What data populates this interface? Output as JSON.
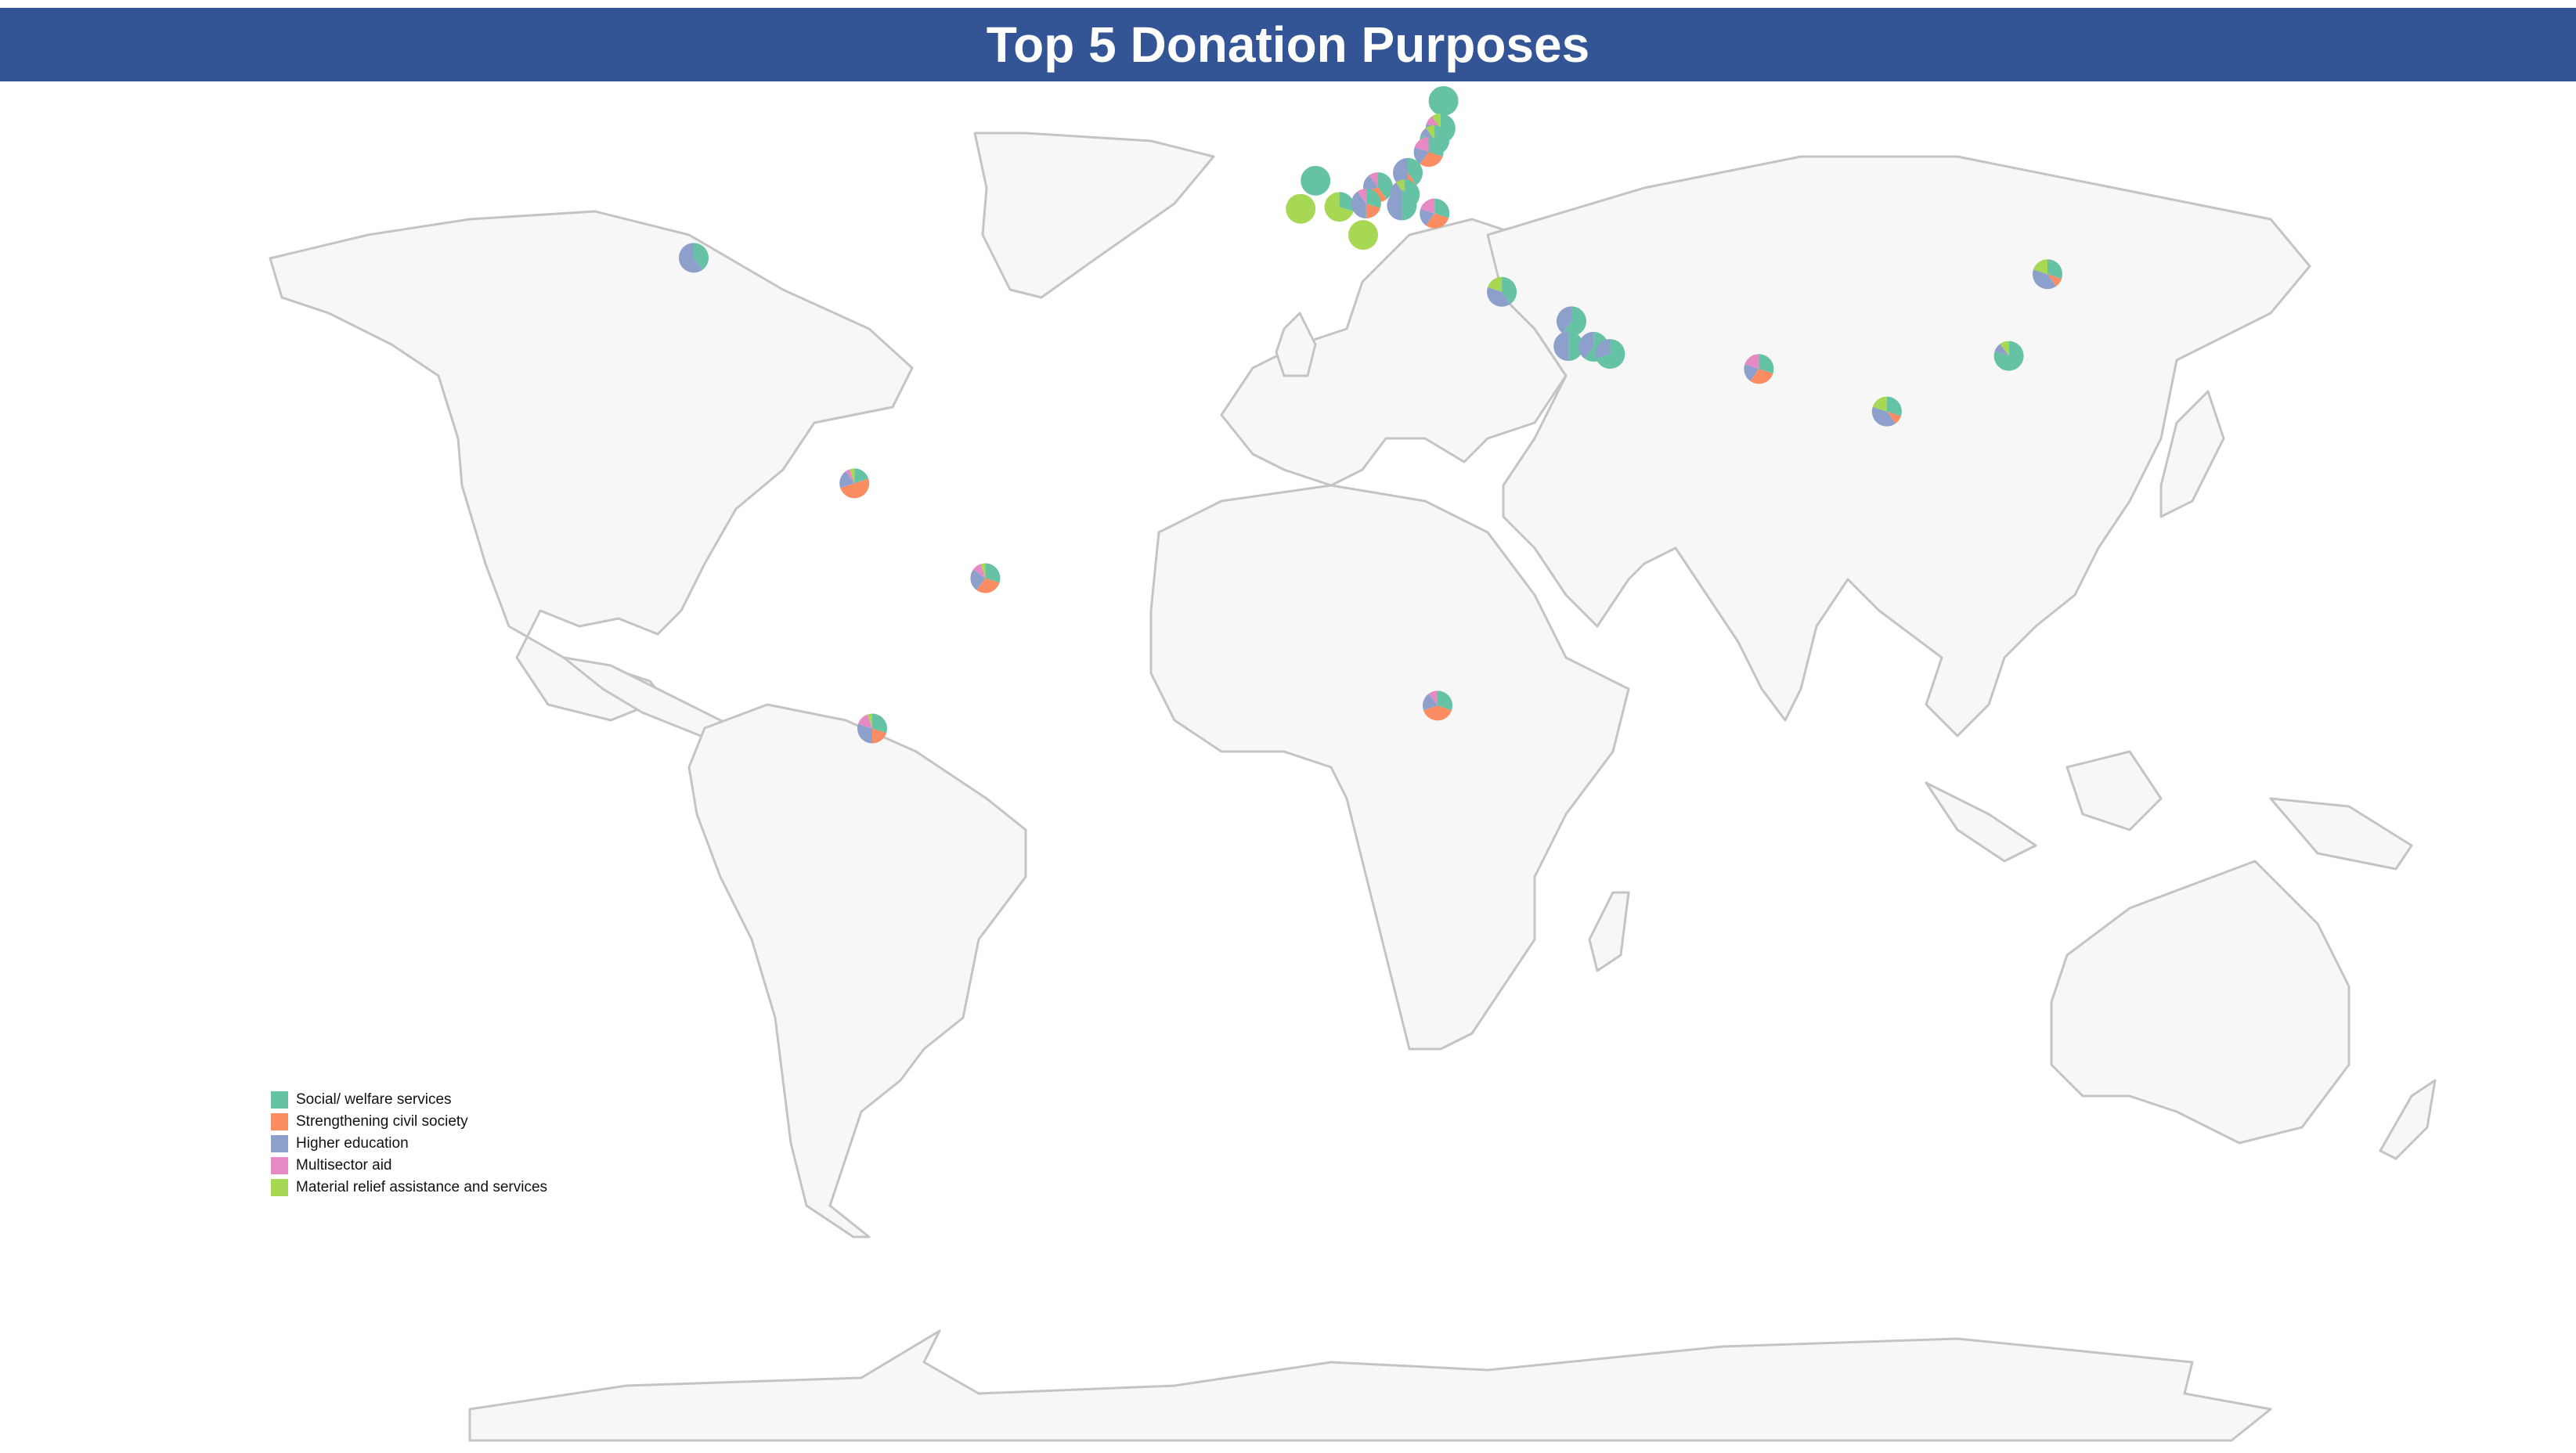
{
  "title": "Top 5 Donation Purposes",
  "colors": {
    "title_bar": "#345595",
    "land_fill": "#f7f7f7",
    "land_stroke": "#c4c4c4"
  },
  "legend": [
    {
      "label": "Social/ welfare services",
      "color": "#66c2a5"
    },
    {
      "label": "Strengthening civil society",
      "color": "#fc8d62"
    },
    {
      "label": "Higher education",
      "color": "#8da0cb"
    },
    {
      "label": "Multisector aid",
      "color": "#e78ac3"
    },
    {
      "label": "Material relief assistance and services",
      "color": "#a6d854"
    }
  ],
  "chart_data": {
    "type": "pie",
    "map": "world",
    "markers": [
      {
        "id": "usa",
        "lon": -100,
        "lat": 39,
        "shares": [
          0.4,
          0.0,
          0.6,
          0.0,
          0.0
        ]
      },
      {
        "id": "colombia",
        "lon": -73,
        "lat": 4.5,
        "shares": [
          0.2,
          0.5,
          0.2,
          0.05,
          0.05
        ]
      },
      {
        "id": "brazil",
        "lon": -51,
        "lat": -10,
        "shares": [
          0.3,
          0.3,
          0.25,
          0.1,
          0.05
        ]
      },
      {
        "id": "chile",
        "lon": -70,
        "lat": -33,
        "shares": [
          0.3,
          0.2,
          0.3,
          0.15,
          0.05
        ]
      },
      {
        "id": "finland",
        "lon": 26,
        "lat": 63,
        "shares": [
          1.0,
          0.0,
          0.0,
          0.0,
          0.0
        ]
      },
      {
        "id": "estonia",
        "lon": 25.5,
        "lat": 58.8,
        "shares": [
          0.4,
          0.2,
          0.2,
          0.1,
          0.1
        ]
      },
      {
        "id": "latvia",
        "lon": 24.5,
        "lat": 57,
        "shares": [
          0.8,
          0.0,
          0.1,
          0.0,
          0.1
        ]
      },
      {
        "id": "lithuania",
        "lon": 23.5,
        "lat": 55.2,
        "shares": [
          0.3,
          0.3,
          0.2,
          0.2,
          0.0
        ]
      },
      {
        "id": "belgium",
        "lon": 4.5,
        "lat": 50.8,
        "shares": [
          1.0,
          0.0,
          0.0,
          0.0,
          0.0
        ]
      },
      {
        "id": "poland",
        "lon": 20,
        "lat": 52,
        "shares": [
          0.4,
          0.1,
          0.5,
          0.0,
          0.0
        ]
      },
      {
        "id": "czechia",
        "lon": 15,
        "lat": 49.8,
        "shares": [
          0.4,
          0.3,
          0.2,
          0.1,
          0.0
        ]
      },
      {
        "id": "slovakia",
        "lon": 19.5,
        "lat": 48.7,
        "shares": [
          0.6,
          0.1,
          0.2,
          0.0,
          0.1
        ]
      },
      {
        "id": "france",
        "lon": 2,
        "lat": 46.5,
        "shares": [
          0.0,
          0.0,
          0.0,
          0.0,
          1.0
        ]
      },
      {
        "id": "switzerland",
        "lon": 8.5,
        "lat": 46.8,
        "shares": [
          0.3,
          0.0,
          0.0,
          0.0,
          0.7
        ]
      },
      {
        "id": "austria",
        "lon": 13,
        "lat": 47.3,
        "shares": [
          0.3,
          0.2,
          0.4,
          0.1,
          0.0
        ]
      },
      {
        "id": "hungary",
        "lon": 19,
        "lat": 47,
        "shares": [
          0.5,
          0.0,
          0.5,
          0.0,
          0.0
        ]
      },
      {
        "id": "romania",
        "lon": 24.5,
        "lat": 45.8,
        "shares": [
          0.3,
          0.3,
          0.2,
          0.2,
          0.0
        ]
      },
      {
        "id": "italy",
        "lon": 12.5,
        "lat": 42.5,
        "shares": [
          0.0,
          0.0,
          0.0,
          0.0,
          1.0
        ]
      },
      {
        "id": "lebanon",
        "lon": 35.8,
        "lat": 33.8,
        "shares": [
          0.4,
          0.0,
          0.4,
          0.0,
          0.2
        ]
      },
      {
        "id": "kuwait",
        "lon": 47.5,
        "lat": 29.3,
        "shares": [
          0.6,
          0.0,
          0.4,
          0.0,
          0.0
        ]
      },
      {
        "id": "saudi_arabia",
        "lon": 47,
        "lat": 25.5,
        "shares": [
          0.5,
          0.0,
          0.5,
          0.0,
          0.0
        ]
      },
      {
        "id": "qatar",
        "lon": 51.2,
        "lat": 25.4,
        "shares": [
          0.6,
          0.0,
          0.4,
          0.0,
          0.0
        ]
      },
      {
        "id": "uae",
        "lon": 54,
        "lat": 24.3,
        "shares": [
          0.7,
          0.0,
          0.3,
          0.0,
          0.0
        ]
      },
      {
        "id": "india",
        "lon": 79,
        "lat": 22,
        "shares": [
          0.3,
          0.3,
          0.2,
          0.2,
          0.0
        ]
      },
      {
        "id": "thailand",
        "lon": 100.5,
        "lat": 15.5,
        "shares": [
          0.3,
          0.1,
          0.4,
          0.0,
          0.2
        ]
      },
      {
        "id": "south_korea",
        "lon": 127.5,
        "lat": 36.5,
        "shares": [
          0.3,
          0.1,
          0.4,
          0.0,
          0.2
        ]
      },
      {
        "id": "taiwan",
        "lon": 121,
        "lat": 24,
        "shares": [
          0.8,
          0.0,
          0.1,
          0.0,
          0.1
        ]
      },
      {
        "id": "south_africa",
        "lon": 25,
        "lat": -29.5,
        "shares": [
          0.3,
          0.4,
          0.2,
          0.1,
          0.0
        ]
      }
    ]
  }
}
